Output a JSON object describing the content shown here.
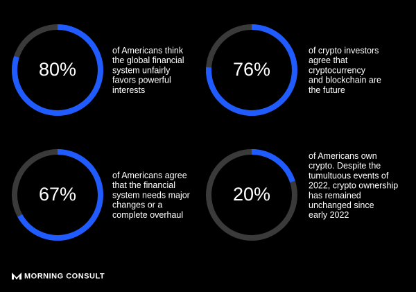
{
  "chart_data": [
    {
      "type": "donut",
      "values": [
        80
      ],
      "value_labels": [
        "80%"
      ],
      "color": "#1f5bff",
      "track_color": "#3a3a3a",
      "lines": [
        "of Americans think",
        "the global financial",
        "system unfairly",
        "favors powerful",
        "interests"
      ]
    },
    {
      "type": "donut",
      "values": [
        76
      ],
      "value_labels": [
        "76%"
      ],
      "color": "#1f5bff",
      "track_color": "#3a3a3a",
      "lines": [
        "of crypto investors",
        "agree that",
        "cryptocurrency",
        "and blockchain are",
        "the future"
      ]
    },
    {
      "type": "donut",
      "values": [
        67
      ],
      "value_labels": [
        "67%"
      ],
      "color": "#1f5bff",
      "track_color": "#3a3a3a",
      "lines": [
        "of Americans agree",
        "that the financial",
        "system needs major",
        "changes or a",
        "complete overhaul"
      ]
    },
    {
      "type": "donut",
      "values": [
        20
      ],
      "value_labels": [
        "20%"
      ],
      "color": "#1f5bff",
      "track_color": "#3a3a3a",
      "lines": [
        "of Americans own",
        "crypto. Despite the",
        "tumultuous events of",
        "2022, crypto ownership",
        "has remained",
        "unchanged since",
        "early 2022"
      ]
    }
  ],
  "footer": {
    "brand": "MORNING CONSULT"
  }
}
